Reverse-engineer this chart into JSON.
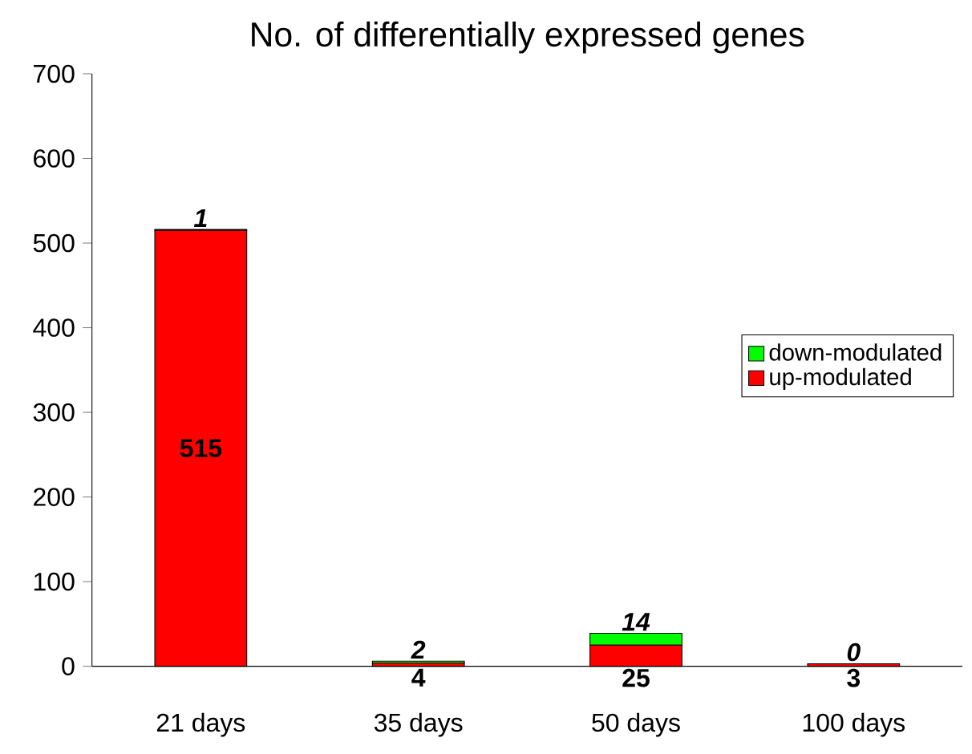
{
  "chart_data": {
    "type": "bar",
    "title": "No. of differentially expressed genes",
    "categories": [
      "21 days",
      "35 days",
      "50 days",
      "100 days"
    ],
    "stacked": true,
    "legend": "right",
    "ylim": [
      0,
      700
    ],
    "yticks": [
      0,
      100,
      200,
      300,
      400,
      500,
      600,
      700
    ],
    "series": [
      {
        "name": "up-modulated",
        "color": "#ff0000",
        "values": [
          515,
          4,
          25,
          3
        ],
        "value_labels": [
          "515",
          "4",
          "25",
          "3"
        ]
      },
      {
        "name": "down-modulated",
        "color": "#00ff00",
        "values": [
          1,
          2,
          14,
          0
        ],
        "value_labels": [
          "1",
          "2",
          "14",
          "0"
        ]
      }
    ]
  }
}
